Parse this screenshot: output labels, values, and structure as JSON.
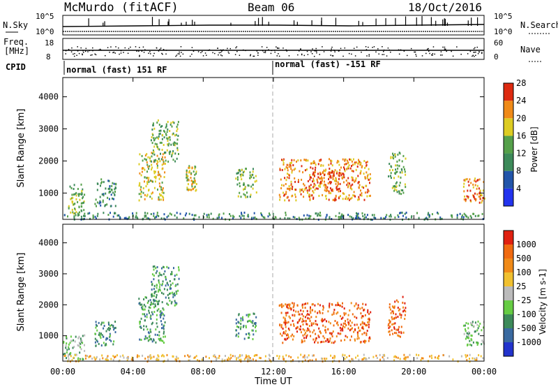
{
  "header": {
    "station": "McMurdo (fitACF)",
    "beam": "Beam 06",
    "date": "18/Oct/2016"
  },
  "noise_panel": {
    "left_label": "N.Sky",
    "right_label": "N.Search",
    "left_ticks": [
      "10^5",
      "10^0"
    ],
    "right_ticks": [
      "10^5",
      "10^0"
    ]
  },
  "freq_panel": {
    "left_label_1": "Freq.",
    "left_label_2": "[MHz]",
    "right_label": "Nave",
    "left_ticks": [
      "18",
      "8"
    ],
    "right_ticks": [
      "60",
      "0"
    ]
  },
  "cpid": {
    "label": "CPID",
    "first": "normal (fast) 151 RF",
    "second": "normal (fast) -151 RF"
  },
  "chart_data": [
    {
      "type": "heatmap",
      "panel": "power",
      "ylabel": "Slant Range [km]",
      "xlabel": "Time UT",
      "x_ticks": [
        "00:00",
        "04:00",
        "08:00",
        "12:00",
        "16:00",
        "20:00",
        "00:00"
      ],
      "y_ticks": [
        1000,
        2000,
        3000,
        4000
      ],
      "ylim": [
        180,
        4600
      ],
      "xlim_hours": [
        0,
        24
      ],
      "colorbar": {
        "label": "Power [dB]",
        "ticks": [
          4,
          8,
          12,
          16,
          20,
          24,
          28
        ],
        "colors": [
          "#2233ee",
          "#2255aa",
          "#3d8a5a",
          "#55a04a",
          "#ddcc22",
          "#f08a18",
          "#dd2a10"
        ]
      },
      "scatter_regions": [
        {
          "t0": 0.3,
          "t1": 1.2,
          "r0": 300,
          "r1": 1300,
          "level": 3
        },
        {
          "t0": 1.8,
          "t1": 3.0,
          "r0": 600,
          "r1": 1500,
          "level": 2
        },
        {
          "t0": 4.3,
          "t1": 5.8,
          "r0": 800,
          "r1": 2300,
          "level": 4
        },
        {
          "t0": 5.0,
          "t1": 6.6,
          "r0": 2000,
          "r1": 3300,
          "level": 3
        },
        {
          "t0": 7.0,
          "t1": 7.6,
          "r0": 1100,
          "r1": 1900,
          "level": 4
        },
        {
          "t0": 9.8,
          "t1": 11.0,
          "r0": 900,
          "r1": 1800,
          "level": 3
        },
        {
          "t0": 12.3,
          "t1": 17.5,
          "r0": 800,
          "r1": 2100,
          "level": 5
        },
        {
          "t0": 14.0,
          "t1": 15.8,
          "r0": 1100,
          "r1": 1700,
          "level": 6
        },
        {
          "t0": 18.5,
          "t1": 19.5,
          "r0": 1000,
          "r1": 2300,
          "level": 3
        },
        {
          "t0": 22.8,
          "t1": 24.0,
          "r0": 700,
          "r1": 1500,
          "level": 5
        },
        {
          "t0": 0.0,
          "t1": 24.0,
          "r0": 200,
          "r1": 420,
          "level": 2
        }
      ]
    },
    {
      "type": "heatmap",
      "panel": "velocity",
      "ylabel": "Slant Range [km]",
      "xlabel": "Time UT",
      "x_ticks": [
        "00:00",
        "04:00",
        "08:00",
        "12:00",
        "16:00",
        "20:00",
        "00:00"
      ],
      "y_ticks": [
        1000,
        2000,
        3000,
        4000
      ],
      "ylim": [
        180,
        4600
      ],
      "xlim_hours": [
        0,
        24
      ],
      "colorbar": {
        "label": "Velocity [m s-1]",
        "ticks": [
          "1000",
          "500",
          "100",
          "25",
          "-25",
          "-100",
          "-500",
          "-1000"
        ],
        "colors": [
          "#2233cc",
          "#3a6aa0",
          "#3d8a5a",
          "#66cc44",
          "#bbbbbb",
          "#f0c030",
          "#f08a18",
          "#f06a10",
          "#e02010"
        ]
      },
      "scatter_regions": [
        {
          "t0": 0.0,
          "t1": 1.2,
          "r0": 250,
          "r1": 1100,
          "level": 3
        },
        {
          "t0": 1.8,
          "t1": 3.0,
          "r0": 700,
          "r1": 1500,
          "level": 2
        },
        {
          "t0": 4.3,
          "t1": 5.8,
          "r0": 800,
          "r1": 2300,
          "level": 2
        },
        {
          "t0": 5.0,
          "t1": 6.6,
          "r0": 2000,
          "r1": 3300,
          "level": 2
        },
        {
          "t0": 9.8,
          "t1": 11.0,
          "r0": 900,
          "r1": 1800,
          "level": 2
        },
        {
          "t0": 12.3,
          "t1": 17.5,
          "r0": 800,
          "r1": 2100,
          "level": 7
        },
        {
          "t0": 18.5,
          "t1": 19.5,
          "r0": 1000,
          "r1": 2300,
          "level": 7
        },
        {
          "t0": 22.8,
          "t1": 24.0,
          "r0": 700,
          "r1": 1500,
          "level": 3
        },
        {
          "t0": 0.0,
          "t1": 24.0,
          "r0": 200,
          "r1": 420,
          "level": 5
        }
      ]
    }
  ]
}
